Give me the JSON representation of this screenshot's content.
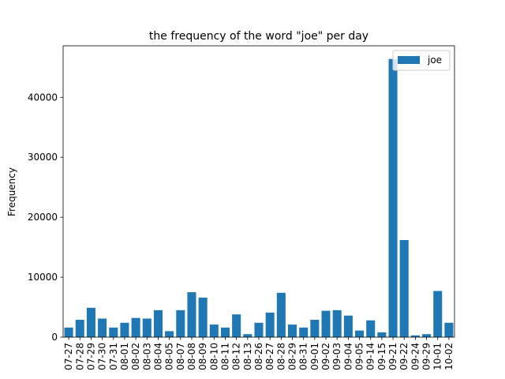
{
  "chart_data": {
    "type": "bar",
    "title": "the frequency of the word \"joe\" per day",
    "xlabel": "",
    "ylabel": "Frequency",
    "categories": [
      "07-27",
      "07-28",
      "07-29",
      "07-30",
      "07-31",
      "08-01",
      "08-02",
      "08-03",
      "08-04",
      "08-05",
      "08-07",
      "08-08",
      "08-09",
      "08-10",
      "08-11",
      "08-12",
      "08-13",
      "08-26",
      "08-27",
      "08-28",
      "08-29",
      "08-31",
      "09-01",
      "09-02",
      "09-03",
      "09-04",
      "09-05",
      "09-14",
      "09-15",
      "09-21",
      "09-22",
      "09-24",
      "09-29",
      "10-01",
      "10-02"
    ],
    "series": [
      {
        "name": "joe",
        "values": [
          1600,
          2900,
          4900,
          3100,
          1600,
          2400,
          3200,
          3100,
          4500,
          1000,
          4500,
          7500,
          6600,
          2100,
          1600,
          3800,
          500,
          2400,
          4100,
          7400,
          2100,
          1600,
          2900,
          4400,
          4500,
          3600,
          1100,
          2800,
          800,
          46400,
          16200,
          300,
          500,
          7700,
          2400
        ]
      }
    ],
    "ylim": [
      0,
      48600
    ],
    "yticks": [
      0,
      10000,
      20000,
      30000,
      40000
    ],
    "grid": false,
    "legend_position": "top-right",
    "colors": {
      "bar": "#1f77b4",
      "axis": "#000000",
      "legend_border": "#cccccc"
    }
  }
}
